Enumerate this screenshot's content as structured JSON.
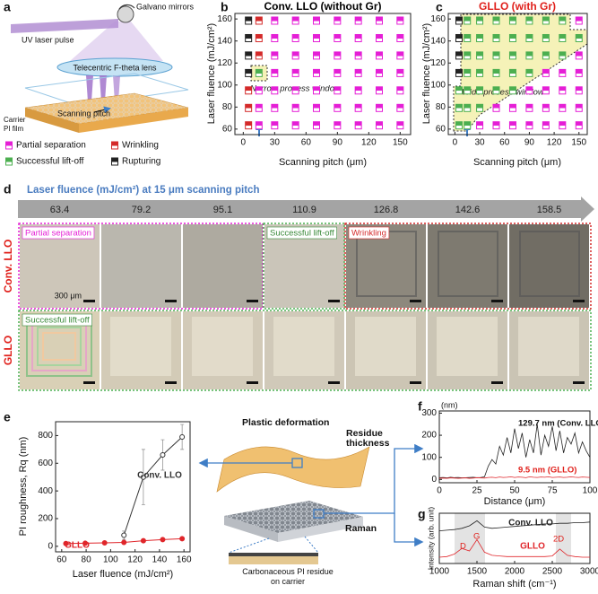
{
  "panel_labels": [
    "a",
    "b",
    "c",
    "d",
    "e",
    "f",
    "g"
  ],
  "schematic_a": {
    "labels": [
      "Galvano mirrors",
      "UV laser pulse",
      "Telecentric F-theta lens",
      "Scanning pitch",
      "Carrier",
      "PI film"
    ]
  },
  "photos_d": {
    "title": "Laser fluence (mJ/cm²) at 15 μm scanning pitch",
    "fluences": [
      63.4,
      79.2,
      95.1,
      110.9,
      126.8,
      142.6,
      158.5
    ],
    "rows": [
      "Conv. LLO",
      "GLLO"
    ],
    "tags": [
      "Partial separation",
      "Successful lift-off",
      "Wrinkling",
      "Successful lift-off"
    ],
    "scale_bar": "300 μm"
  },
  "schematic_e": {
    "labels": [
      "Plastic deformation",
      "Residue thickness",
      "Raman",
      "Carbonaceous PI residue on carrier"
    ]
  },
  "chart_data": [
    {
      "type": "scatter",
      "title": "Conv. LLO (without Gr)",
      "xlabel": "Scanning pitch (μm)",
      "ylabel": "Laser fluence (mJ/cm²)",
      "xlim": [
        -8,
        160
      ],
      "ylim": [
        55,
        165
      ],
      "xticks": [
        0,
        30,
        60,
        90,
        120,
        150
      ],
      "yticks": [
        60,
        80,
        100,
        120,
        140,
        160
      ],
      "annotations": [
        "Narrow process window"
      ],
      "series": [
        {
          "name": "Partial separation",
          "color": "#e51fd6",
          "x": [
            15,
            15,
            15,
            30,
            30,
            30,
            30,
            30,
            30,
            30,
            50,
            50,
            50,
            50,
            50,
            50,
            50,
            70,
            70,
            70,
            70,
            70,
            70,
            70,
            90,
            90,
            90,
            90,
            90,
            90,
            90,
            110,
            110,
            110,
            110,
            110,
            110,
            110,
            130,
            130,
            130,
            130,
            130,
            130,
            130,
            150,
            150,
            150,
            150,
            150,
            150,
            150
          ],
          "y": [
            63.4,
            79.2,
            95.1,
            63.4,
            79.2,
            95.1,
            110.9,
            126.8,
            142.6,
            158.5,
            63.4,
            79.2,
            95.1,
            110.9,
            126.8,
            142.6,
            158.5,
            63.4,
            79.2,
            95.1,
            110.9,
            126.8,
            142.6,
            158.5,
            63.4,
            79.2,
            95.1,
            110.9,
            126.8,
            142.6,
            158.5,
            63.4,
            79.2,
            95.1,
            110.9,
            126.8,
            142.6,
            158.5,
            63.4,
            79.2,
            95.1,
            110.9,
            126.8,
            142.6,
            158.5,
            63.4,
            79.2,
            95.1,
            110.9,
            126.8,
            142.6,
            158.5
          ]
        },
        {
          "name": "Wrinkling",
          "color": "#d42a2a",
          "x": [
            15,
            15,
            15,
            5,
            5,
            5
          ],
          "y": [
            126.8,
            142.6,
            158.5,
            63.4,
            79.2,
            95.1
          ]
        },
        {
          "name": "Successful lift-off",
          "color": "#4caf50",
          "x": [
            15
          ],
          "y": [
            110.9
          ]
        },
        {
          "name": "Rupturing",
          "color": "#222222",
          "x": [
            5,
            5,
            5,
            5
          ],
          "y": [
            110.9,
            126.8,
            142.6,
            158.5
          ]
        }
      ]
    },
    {
      "type": "scatter",
      "title": "GLLO (with Gr)",
      "xlabel": "Scanning pitch (μm)",
      "ylabel": "Laser fluence (mJ/cm²)",
      "xlim": [
        -8,
        160
      ],
      "ylim": [
        55,
        165
      ],
      "xticks": [
        0,
        30,
        60,
        90,
        120,
        150
      ],
      "yticks": [
        60,
        80,
        100,
        120,
        140,
        160
      ],
      "annotations": [
        "Wide process window"
      ],
      "series": [
        {
          "color": "#e51fd6",
          "x": [
            30,
            50,
            50,
            70,
            70,
            90,
            90,
            90,
            110,
            110,
            110,
            110,
            130,
            130,
            130,
            130,
            150,
            150,
            150,
            150,
            150,
            150
          ],
          "y": [
            63.4,
            63.4,
            79.2,
            63.4,
            79.2,
            63.4,
            79.2,
            95.1,
            63.4,
            79.2,
            95.1,
            110.9,
            63.4,
            79.2,
            95.1,
            110.9,
            63.4,
            79.2,
            95.1,
            110.9,
            126.8,
            158.5
          ]
        },
        {
          "color": "#4caf50",
          "x": [
            5,
            5,
            5,
            15,
            15,
            15,
            15,
            15,
            15,
            15,
            30,
            30,
            30,
            30,
            30,
            30,
            50,
            50,
            50,
            50,
            50,
            70,
            70,
            70,
            70,
            70,
            90,
            90,
            90,
            90,
            110,
            110,
            110,
            130,
            130,
            130,
            150
          ],
          "y": [
            63.4,
            79.2,
            95.1,
            63.4,
            79.2,
            95.1,
            110.9,
            126.8,
            142.6,
            158.5,
            79.2,
            95.1,
            110.9,
            126.8,
            142.6,
            158.5,
            95.1,
            110.9,
            126.8,
            142.6,
            158.5,
            95.1,
            110.9,
            126.8,
            142.6,
            158.5,
            110.9,
            126.8,
            142.6,
            158.5,
            126.8,
            142.6,
            158.5,
            126.8,
            142.6,
            158.5,
            142.6
          ]
        },
        {
          "color": "#222222",
          "x": [
            5,
            5,
            5,
            5
          ],
          "y": [
            110.9,
            126.8,
            142.6,
            158.5
          ]
        }
      ]
    },
    {
      "type": "line",
      "xlabel": "Laser fluence (mJ/cm²)",
      "ylabel": "PI roughness, Rq (nm)",
      "xlim": [
        55,
        165
      ],
      "ylim": [
        -40,
        900
      ],
      "xticks": [
        60,
        80,
        100,
        120,
        140,
        160
      ],
      "yticks": [
        0,
        200,
        400,
        600,
        800
      ],
      "markers": true,
      "x": [
        63.4,
        79.2,
        95.1,
        110.9,
        126.8,
        142.6,
        158.5
      ],
      "series": [
        {
          "name": "Conv. LLO",
          "color": "#333333",
          "values": [
            null,
            null,
            null,
            80,
            500,
            660,
            790
          ],
          "errors": [
            null,
            null,
            null,
            30,
            200,
            110,
            90
          ]
        },
        {
          "name": "GLLO",
          "color": "#e0262b",
          "values": [
            20,
            22,
            25,
            28,
            40,
            48,
            55
          ]
        }
      ]
    },
    {
      "type": "line",
      "xlabel": "Distance (μm)",
      "ylabel": "(nm)",
      "xlim": [
        0,
        100
      ],
      "ylim": [
        -15,
        310
      ],
      "xticks": [
        0,
        25,
        50,
        75,
        100
      ],
      "yticks": [
        0,
        100,
        200,
        300
      ],
      "annotations": [
        "129.7 nm (Conv. LLO)",
        "9.5 nm (GLLO)"
      ],
      "x": [
        0,
        2.5,
        5,
        7.5,
        10,
        12.5,
        15,
        17.5,
        20,
        22.5,
        25,
        27.5,
        30,
        32.5,
        35,
        37.5,
        40,
        42.5,
        45,
        47.5,
        50,
        52.5,
        55,
        57.5,
        60,
        62.5,
        65,
        67.5,
        70,
        72.5,
        75,
        77.5,
        80,
        82.5,
        85,
        87.5,
        90,
        92.5,
        95,
        97.5,
        100
      ],
      "series": [
        {
          "color": "#222222",
          "values": [
            8,
            9,
            7,
            10,
            8,
            9,
            7,
            8,
            9,
            10,
            8,
            9,
            12,
            60,
            90,
            70,
            150,
            110,
            190,
            120,
            230,
            140,
            210,
            100,
            180,
            120,
            250,
            110,
            200,
            150,
            240,
            130,
            220,
            120,
            190,
            160,
            210,
            120,
            170,
            130,
            100
          ]
        },
        {
          "color": "#e0262b",
          "values": [
            5,
            6,
            5,
            7,
            6,
            5,
            6,
            7,
            5,
            6,
            8,
            7,
            6,
            9,
            10,
            8,
            11,
            9,
            10,
            12,
            9,
            11,
            10,
            8,
            12,
            10,
            9,
            11,
            10,
            12,
            9,
            10,
            11,
            9,
            10,
            12,
            10,
            9,
            11,
            10,
            9
          ]
        }
      ]
    },
    {
      "type": "line",
      "xlabel": "Raman shift (cm⁻¹)",
      "ylabel": "Intensity (arb. unit)",
      "xlim": [
        1000,
        3000
      ],
      "ylim": [
        0,
        8
      ],
      "xticks": [
        1000,
        1500,
        2000,
        2500,
        3000
      ],
      "annotations": [
        "D",
        "G",
        "2D"
      ],
      "x": [
        1000,
        1100,
        1200,
        1300,
        1400,
        1500,
        1600,
        1700,
        1800,
        1900,
        2000,
        2100,
        2200,
        2300,
        2400,
        2500,
        2600,
        2700,
        2800,
        2900,
        3000
      ],
      "series": [
        {
          "name": "Conv. LLO",
          "color": "#222222",
          "values": [
            5.2,
            5.3,
            5.4,
            5.6,
            6.0,
            6.8,
            5.8,
            5.6,
            5.7,
            5.8,
            5.9,
            6.0,
            6.1,
            6.2,
            6.3,
            6.3,
            6.4,
            6.4,
            6.5,
            6.5,
            6.6
          ]
        },
        {
          "name": "GLLO",
          "color": "#e0262b",
          "values": [
            1.0,
            1.1,
            1.5,
            2.4,
            2.0,
            3.8,
            1.8,
            1.3,
            1.2,
            1.1,
            1.1,
            1.1,
            1.1,
            1.1,
            1.1,
            1.2,
            2.3,
            1.3,
            1.1,
            1.0,
            1.0
          ]
        }
      ]
    }
  ]
}
